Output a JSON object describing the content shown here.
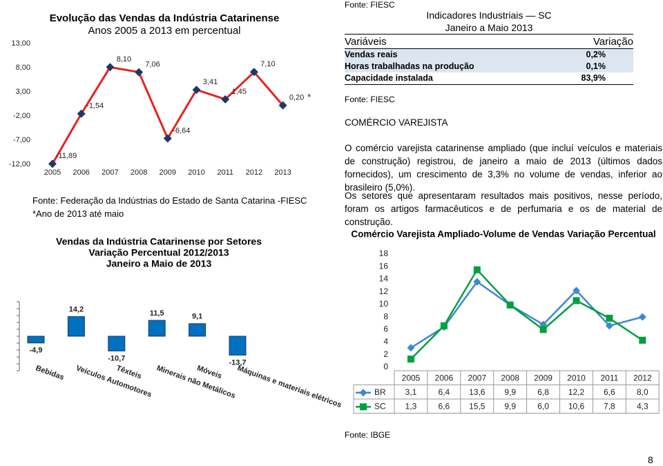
{
  "chart_data": [
    {
      "type": "line",
      "title": "Evolução das Vendas da Indústria Catarinense",
      "subtitle": "Anos 2005 a 2013 em percentual",
      "categories": [
        "2005",
        "2006",
        "2007",
        "2008",
        "2009",
        "2010",
        "2011",
        "2012",
        "2013"
      ],
      "series": [
        {
          "color": "#e8211d",
          "marker_color": "#1f3864",
          "values": [
            -11.89,
            -1.54,
            8.1,
            7.06,
            -6.64,
            3.41,
            1.45,
            7.1,
            0.2
          ],
          "value_labels": [
            "-11,89",
            "-1,54",
            "8,10",
            "7,06",
            "-6,64",
            "3,41",
            "1,45",
            "7,10",
            "0,20"
          ]
        }
      ],
      "annotation": "*",
      "ylim": [
        -12,
        13
      ],
      "yticks": [
        {
          "value": 13,
          "label": "13,00"
        },
        {
          "value": 8,
          "label": "8,00"
        },
        {
          "value": 3,
          "label": "3,00"
        },
        {
          "value": -2,
          "label": "-2,00"
        },
        {
          "value": -7,
          "label": "-7,00"
        },
        {
          "value": -12,
          "label": "-12,00"
        }
      ]
    },
    {
      "type": "bar",
      "title": "Vendas da Indústria Catarinense por Setores",
      "subtitle": [
        "Variação Percentual 2012/2013",
        "Janeiro a Maio de 2013"
      ],
      "categories": [
        "Bebidas",
        "Veículos Automotores",
        "Têxteis",
        "Minerais não Metálicos",
        "Móveis",
        "Máquinas e materiais elétricos"
      ],
      "values": [
        -4.9,
        14.2,
        -10.7,
        11.5,
        9.1,
        -13.7
      ],
      "value_labels": [
        "-4,9",
        "14,2",
        "-10,7",
        "11,5",
        "9,1",
        "-13,7"
      ],
      "color": "#0070c0",
      "ylim": [
        -25,
        25
      ]
    },
    {
      "type": "line",
      "title": "Comércio Varejista Ampliado-Volume de Vendas Variação Percentual",
      "categories": [
        "2005",
        "2006",
        "2007",
        "2008",
        "2009",
        "2010",
        "2011",
        "2012"
      ],
      "series": [
        {
          "name": "BR",
          "color": "#3f88d0",
          "marker": "diamond",
          "values": [
            3.1,
            6.4,
            13.6,
            9.9,
            6.8,
            12.2,
            6.6,
            8.0
          ],
          "value_labels": [
            "3,1",
            "6,4",
            "13,6",
            "9,9",
            "6,8",
            "12,2",
            "6,6",
            "8,0"
          ]
        },
        {
          "name": "SC",
          "color": "#00a03e",
          "marker": "square",
          "values": [
            1.3,
            6.6,
            15.5,
            9.9,
            6.0,
            10.6,
            7.8,
            4.3
          ],
          "value_labels": [
            "1,3",
            "6,6",
            "15,5",
            "9,9",
            "6,0",
            "10,6",
            "7,8",
            "4,3"
          ]
        }
      ],
      "ylim": [
        0,
        18
      ],
      "yticks": [
        0,
        2,
        4,
        6,
        8,
        10,
        12,
        14,
        16,
        18
      ],
      "data_table": true
    }
  ],
  "source_top": "Fonte: FIESC",
  "indicators": {
    "title": "Indicadores Industriais — SC",
    "subtitle": "Janeiro a Maio 2013",
    "header": [
      "Variáveis",
      "Variação"
    ],
    "rows": [
      [
        "Vendas reais",
        "0,2%"
      ],
      [
        "Horas trabalhadas na produção",
        "0,1%"
      ],
      [
        "Capacidade instalada",
        "83,9%"
      ]
    ]
  },
  "source_industry": "Fonte: Federação da Indústrias do Estado de Santa Catarina -FIESC",
  "note": "*Ano de 2013 até maio",
  "source_fiesc": "Fonte: FIESC",
  "section_title": "COMÉRCIO VAREJISTA",
  "paragraphs": [
    "O comércio varejista catarinense ampliado (que incluí veículos e materiais de construção) registrou, de janeiro a maio de 2013 (últimos dados fornecidos), um crescimento de 3,3% no volume de vendas, inferior ao brasileiro (5,0%).",
    "Os setores que apresentaram resultados mais positivos, nesse período, foram os artigos farmacêuticos e de perfumaria e os de material de construção."
  ],
  "source_ibge": "Fonte: IBGE",
  "page_number": "8"
}
